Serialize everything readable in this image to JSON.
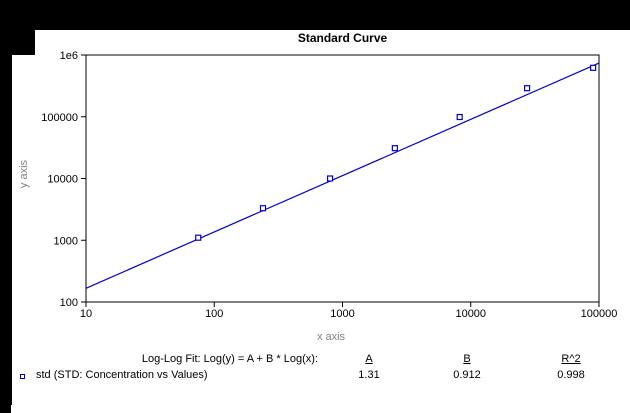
{
  "colors": {
    "series": "#0000cc",
    "axis_title_gray": "#808080",
    "text": "#000000",
    "figure_bg": "#ffffff",
    "frame_bg": "#000000"
  },
  "chart_data": {
    "type": "scatter",
    "title": "Standard Curve",
    "xlabel": "x axis",
    "ylabel": "y axis",
    "x_scale": "log",
    "y_scale": "log",
    "xlim": [
      10,
      100000
    ],
    "ylim": [
      100,
      1000000
    ],
    "grid": false,
    "x_ticks": [
      {
        "label": "10",
        "value": 10
      },
      {
        "label": "100",
        "value": 100
      },
      {
        "label": "1000",
        "value": 1000
      },
      {
        "label": "10000",
        "value": 10000
      },
      {
        "label": "100000",
        "value": 100000
      }
    ],
    "y_ticks": [
      {
        "label": "100",
        "value": 100
      },
      {
        "label": "1000",
        "value": 1000
      },
      {
        "label": "10000",
        "value": 10000
      },
      {
        "label": "100000",
        "value": 100000
      },
      {
        "label": "1e6",
        "value": 1000000
      }
    ],
    "series": [
      {
        "name": "std",
        "marker": "open-square",
        "points": [
          [
            75,
            1100
          ],
          [
            240,
            3300
          ],
          [
            800,
            10000
          ],
          [
            2560,
            31000
          ],
          [
            8200,
            99000
          ],
          [
            27500,
            290000
          ],
          [
            90000,
            620000
          ]
        ]
      }
    ],
    "fit": {
      "label": "Log-Log Fit: Log(y) = A + B * Log(x):",
      "columns": [
        "A",
        "B",
        "R^2"
      ],
      "A": "1.31",
      "B": "0.912",
      "R2": "0.998"
    },
    "legend": {
      "label": "std (STD: Concentration vs Values)",
      "marker": "open-square"
    }
  }
}
